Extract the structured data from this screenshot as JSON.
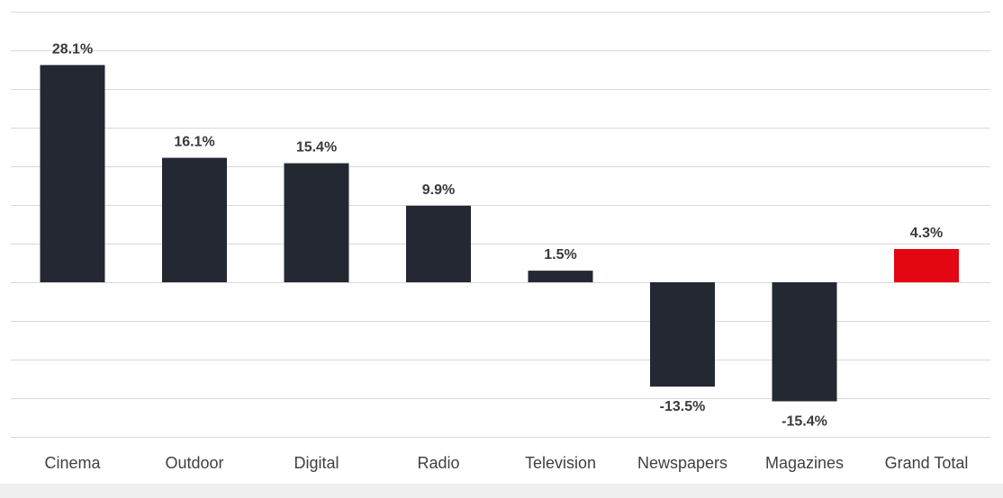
{
  "chart_data": {
    "type": "bar",
    "title": "",
    "xlabel": "",
    "ylabel": "",
    "ylim": [
      -20,
      35
    ],
    "grid_step": 5,
    "grid": true,
    "categories": [
      "Cinema",
      "Outdoor",
      "Digital",
      "Radio",
      "Television",
      "Newspapers",
      "Magazines",
      "Grand Total"
    ],
    "values": [
      28.1,
      16.1,
      15.4,
      9.9,
      1.5,
      -13.5,
      -15.4,
      4.3
    ],
    "value_labels": [
      "28.1%",
      "16.1%",
      "15.4%",
      "9.9%",
      "1.5%",
      "-13.5%",
      "-15.4%",
      "4.3%"
    ],
    "bar_colors": [
      "#232833",
      "#232833",
      "#232833",
      "#232833",
      "#232833",
      "#232833",
      "#232833",
      "#e30613"
    ]
  }
}
